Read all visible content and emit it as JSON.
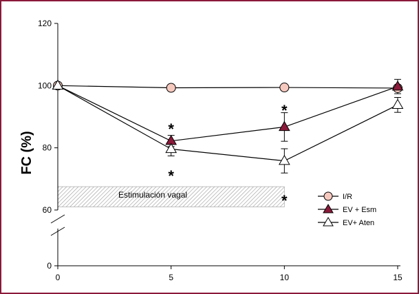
{
  "chart_data": {
    "type": "line",
    "title": "",
    "xlabel": "",
    "ylabel": "FC (%)",
    "x": [
      0,
      5,
      10,
      15
    ],
    "x_ticks": [
      "0",
      "5",
      "10",
      "15"
    ],
    "y_ticks": [
      "0",
      "60",
      "80",
      "100",
      "120"
    ],
    "ylim": [
      0,
      120
    ],
    "axis_break_between": [
      0,
      60
    ],
    "series": [
      {
        "name": "I/R",
        "marker": "circle",
        "color": "#f6c9bf",
        "values": [
          100,
          99.3,
          99.4,
          99.2
        ],
        "errors": [
          0.7,
          0.7,
          0.8,
          0.7
        ]
      },
      {
        "name": "EV + Esm",
        "marker": "triangle",
        "color": "#8b1a3a",
        "values": [
          100,
          82.2,
          86.7,
          99.7
        ],
        "errors": [
          0.7,
          1.8,
          4.6,
          2.3
        ]
      },
      {
        "name": "EV+ Aten",
        "marker": "triangle",
        "color": "#ffffff",
        "values": [
          100,
          79.6,
          75.8,
          93.8
        ],
        "errors": [
          0.8,
          2.2,
          3.9,
          2.4
        ]
      }
    ],
    "annotations": [
      {
        "text": "*",
        "x": 5,
        "y": 87
      },
      {
        "text": "*",
        "x": 5,
        "y": 72
      },
      {
        "text": "*",
        "x": 10,
        "y": 93
      },
      {
        "text": "*",
        "x": 10,
        "y": 64
      }
    ],
    "stimulation_band": {
      "label": "Estimulación vagal",
      "x_range": [
        0,
        10
      ],
      "y_range": [
        61,
        67.5
      ]
    },
    "legend_position": "bottom-right",
    "grid": false
  }
}
